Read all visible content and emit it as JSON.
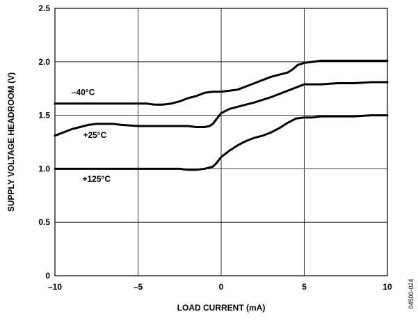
{
  "chart_data": {
    "type": "line",
    "xlabel": "LOAD CURRENT (mA)",
    "ylabel": "SUPPLY VOLTAGE HEADROOM (V)",
    "xlim": [
      -10,
      10
    ],
    "ylim": [
      0,
      2.5
    ],
    "x_ticks": [
      "–10",
      "–5",
      "0",
      "5",
      "10"
    ],
    "y_ticks": [
      "0",
      "0.5",
      "1.0",
      "1.5",
      "2.0",
      "2.5"
    ],
    "x_tick_values": [
      -10,
      -5,
      0,
      5,
      10
    ],
    "y_tick_values": [
      0,
      0.5,
      1.0,
      1.5,
      2.0,
      2.5
    ],
    "grid": true,
    "figure_id": "04500-024",
    "series": [
      {
        "name": "–40°C",
        "x": [
          -10,
          -4.5,
          -4,
          -3.5,
          -3,
          -2.5,
          -2,
          -1.5,
          -1,
          -0.5,
          0,
          0.5,
          1,
          1.5,
          2,
          2.5,
          3,
          3.5,
          4,
          4.3,
          4.6,
          5,
          5.5,
          6,
          7,
          8,
          9,
          10
        ],
        "y": [
          1.61,
          1.61,
          1.6,
          1.6,
          1.61,
          1.63,
          1.66,
          1.68,
          1.71,
          1.72,
          1.72,
          1.73,
          1.74,
          1.77,
          1.8,
          1.83,
          1.86,
          1.88,
          1.9,
          1.93,
          1.97,
          1.99,
          2.0,
          2.01,
          2.01,
          2.01,
          2.01,
          2.01
        ]
      },
      {
        "name": "+25°C",
        "x": [
          -10,
          -9.5,
          -9,
          -8.5,
          -8,
          -7.5,
          -7,
          -6.5,
          -6,
          -5,
          -4,
          -3,
          -2,
          -1.5,
          -1,
          -0.7,
          -0.5,
          -0.3,
          0,
          0.5,
          1,
          1.5,
          2,
          3,
          4,
          4.5,
          5,
          5.5,
          6,
          7,
          8,
          9,
          10
        ],
        "y": [
          1.31,
          1.34,
          1.37,
          1.39,
          1.41,
          1.42,
          1.42,
          1.42,
          1.41,
          1.4,
          1.4,
          1.4,
          1.4,
          1.39,
          1.39,
          1.4,
          1.42,
          1.46,
          1.52,
          1.56,
          1.58,
          1.6,
          1.62,
          1.67,
          1.73,
          1.76,
          1.79,
          1.79,
          1.79,
          1.8,
          1.8,
          1.81,
          1.81
        ]
      },
      {
        "name": "+125°C",
        "x": [
          -10,
          -6,
          -3,
          -2.5,
          -2,
          -1.5,
          -1,
          -0.5,
          -0.3,
          0,
          0.5,
          1,
          1.5,
          2,
          2.5,
          3,
          3.5,
          4,
          4.5,
          5,
          5.5,
          6,
          7,
          8,
          9,
          10
        ],
        "y": [
          1.0,
          1.0,
          1.0,
          1.0,
          0.99,
          0.99,
          1.0,
          1.02,
          1.05,
          1.11,
          1.17,
          1.22,
          1.26,
          1.29,
          1.31,
          1.34,
          1.38,
          1.43,
          1.47,
          1.48,
          1.48,
          1.49,
          1.49,
          1.49,
          1.5,
          1.5
        ]
      }
    ],
    "annotations": [
      {
        "text": "–40°C",
        "x": -8.3,
        "y": 1.69
      },
      {
        "text": "+25°C",
        "x": -7.6,
        "y": 1.29
      },
      {
        "text": "+125°C",
        "x": -7.5,
        "y": 0.88
      }
    ]
  }
}
